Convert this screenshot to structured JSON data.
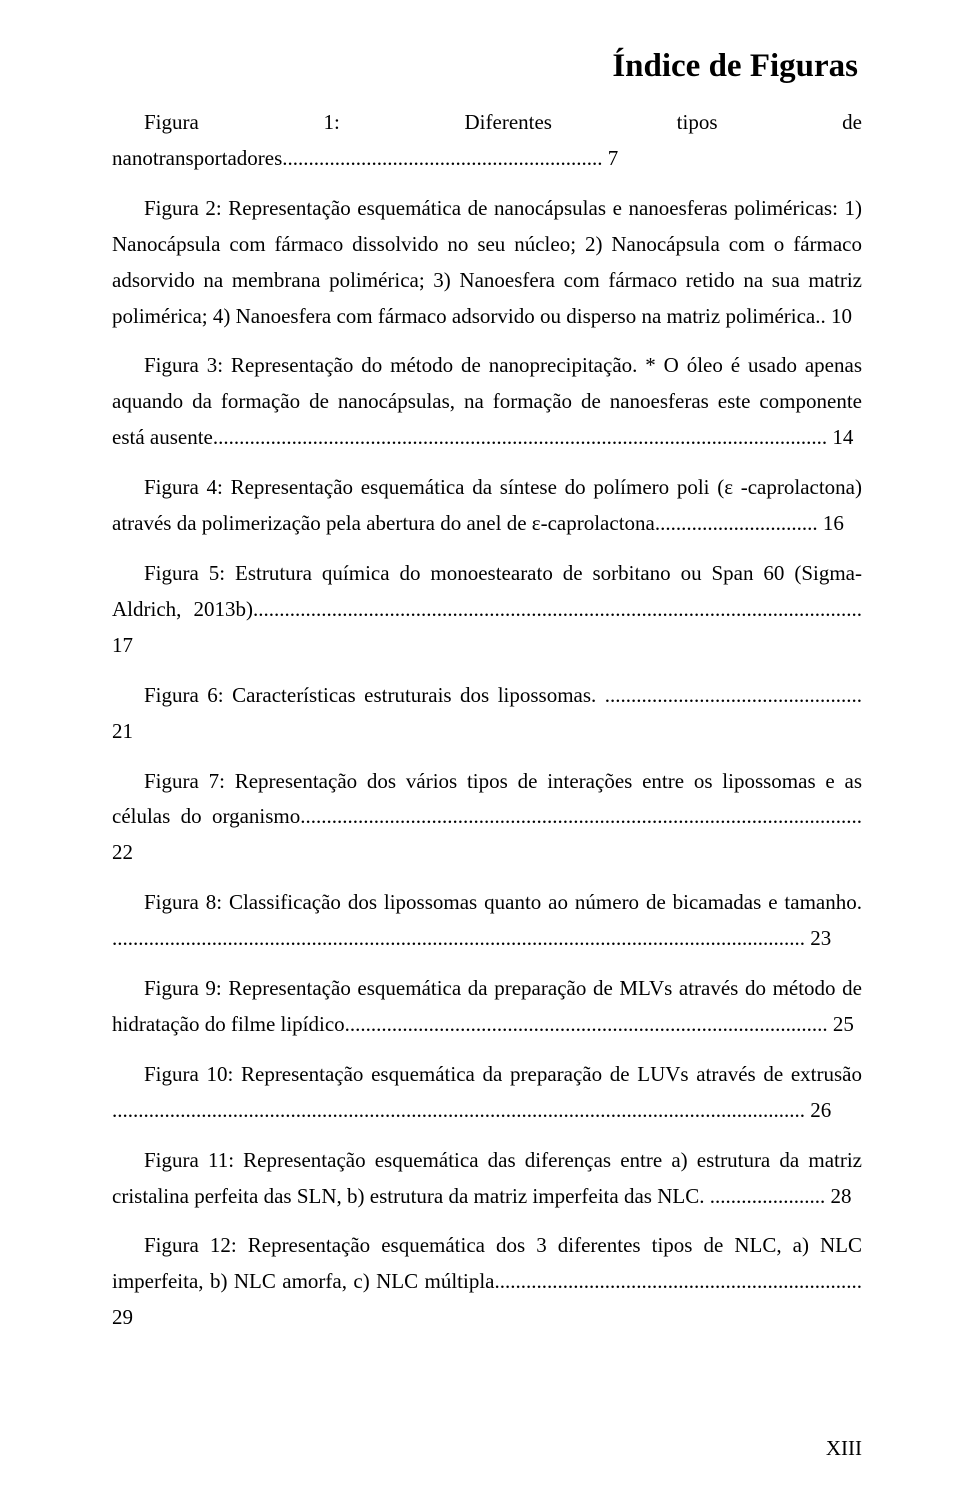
{
  "title": "Índice de Figuras",
  "page_number": "XIII",
  "colors": {
    "text": "#000000",
    "background": "#ffffff"
  },
  "typography": {
    "font_family": "Times New Roman",
    "body_fontsize": 21,
    "title_fontsize": 33,
    "line_height": 1.71
  },
  "entries": [
    {
      "text": "Figura 1: Diferentes tipos de nanotransportadores.",
      "page": "7"
    },
    {
      "text": "Figura 2: Representação esquemática de nanocápsulas e nanoesferas poliméricas: 1) Nanocápsula com fármaco dissolvido no seu núcleo; 2) Nanocápsula com o fármaco adsorvido na membrana polimérica; 3) Nanoesfera com fármaco retido na sua matriz polimérica; 4) Nanoesfera com fármaco adsorvido ou disperso na matriz polimérica.",
      "page": "10"
    },
    {
      "text": "Figura 3: Representação do método de nanoprecipitação. * O óleo é usado apenas aquando da formação de nanocápsulas, na formação de nanoesferas este componente está ausente.",
      "page": "14"
    },
    {
      "text": "Figura 4: Representação esquemática da síntese do polímero poli (ε -caprolactona) através da polimerização pela abertura do anel de ε-caprolactona",
      "page": "16"
    },
    {
      "text": "Figura 5: Estrutura química do monoestearato de sorbitano ou Span 60 (Sigma-Aldrich, 2013b).",
      "page": "17"
    },
    {
      "text": "Figura 6: Características estruturais dos lipossomas. ",
      "page": "21"
    },
    {
      "text": "Figura 7: Representação dos vários tipos de interações entre os lipossomas e as células do organismo",
      "page": "22"
    },
    {
      "text": "Figura 8: Classificação dos lipossomas quanto ao número de bicamadas e tamanho. ",
      "page": "23"
    },
    {
      "text": "Figura 9: Representação esquemática da preparação de MLVs através do método de hidratação do filme lipídico",
      "page": "25"
    },
    {
      "text": "Figura 10: Representação esquemática da preparação de LUVs através de extrusão ",
      "page": "26"
    },
    {
      "text": "Figura 11: Representação esquemática das diferenças entre a) estrutura da matriz cristalina perfeita das SLN, b) estrutura da matriz imperfeita das NLC. ",
      "page": "28"
    },
    {
      "text": "Figura 12: Representação esquemática dos 3 diferentes tipos de NLC, a) NLC imperfeita, b) NLC amorfa, c) NLC múltipla.",
      "page": "29"
    }
  ]
}
